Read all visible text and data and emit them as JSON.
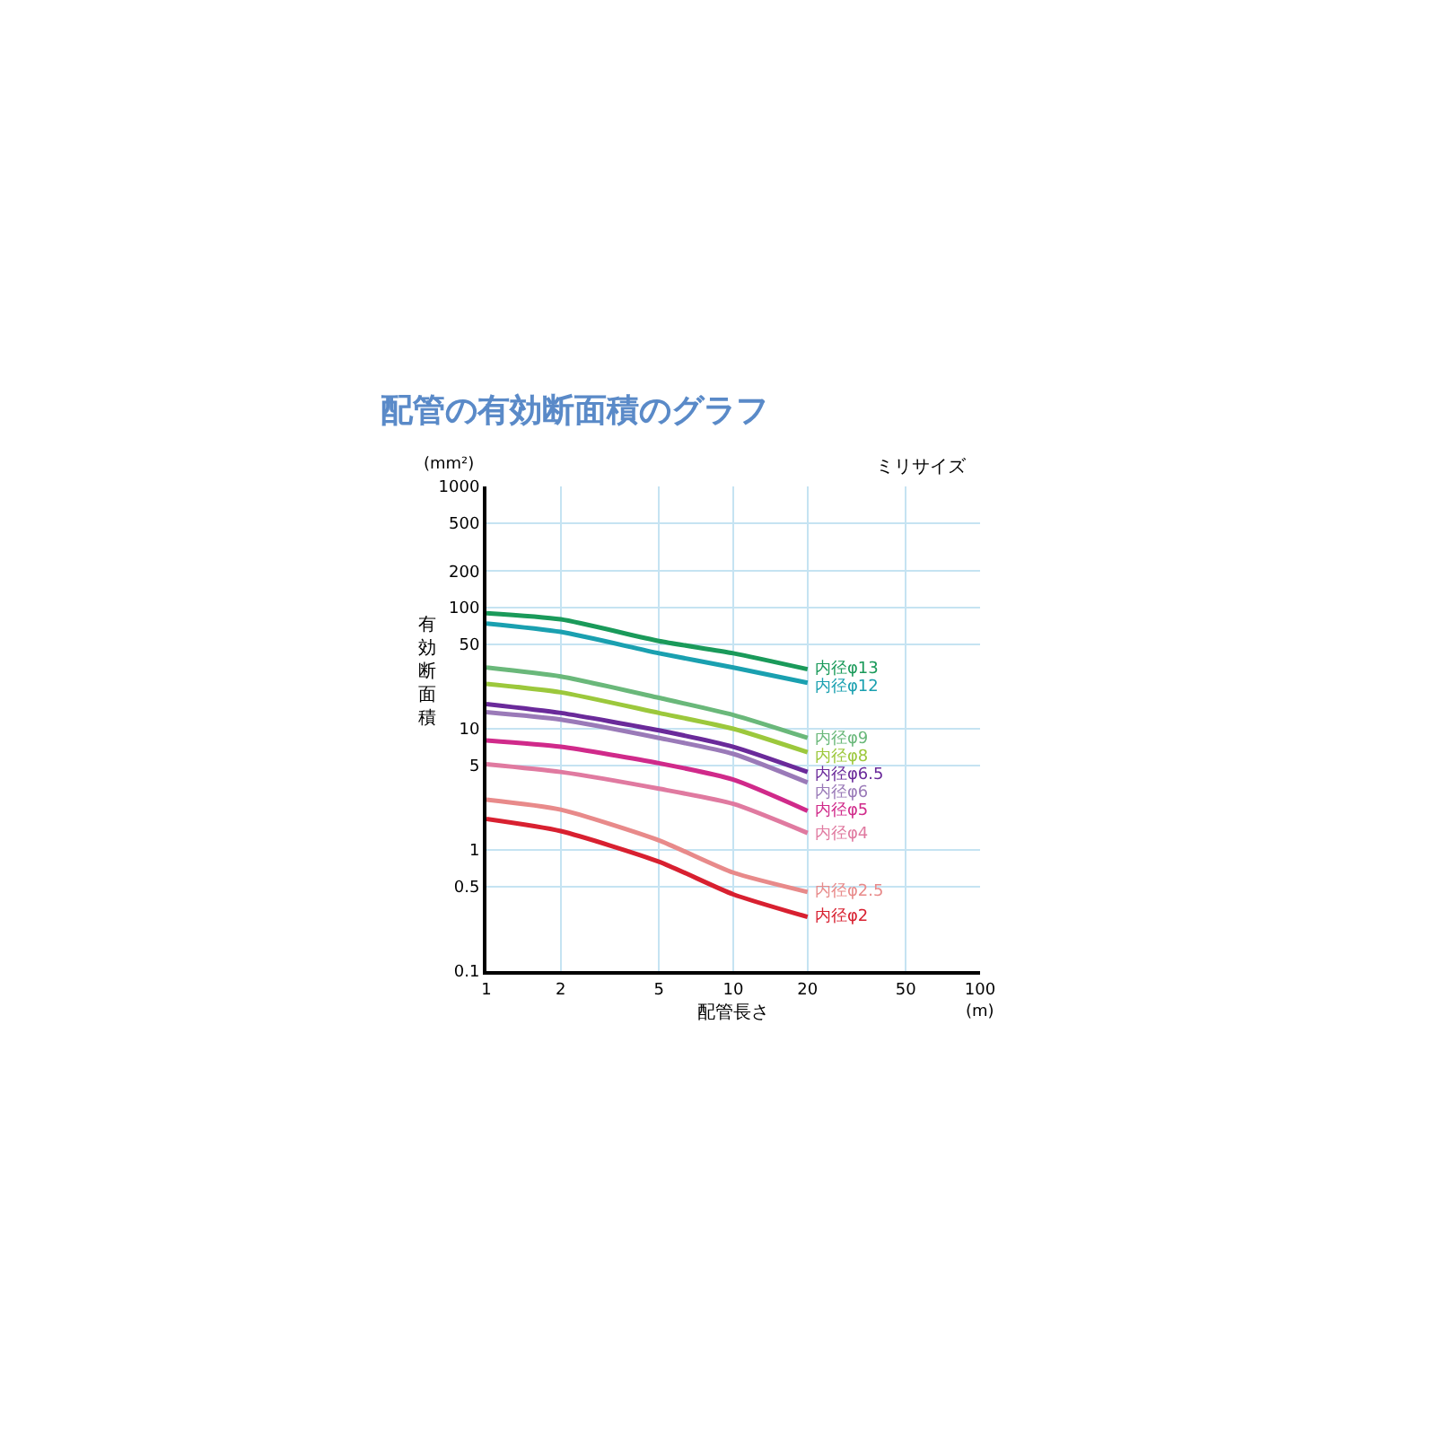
{
  "chart_data": {
    "type": "line",
    "title": "配管の有効断面積のグラフ",
    "xlabel": "配管長さ",
    "ylabel": "有効断面積",
    "log": "xy",
    "grid": true,
    "legend": false,
    "marker": "none",
    "line_style": "solid",
    "x": [
      1,
      2,
      5,
      10,
      20
    ],
    "xlim": [
      1,
      100
    ],
    "xticks": [
      1,
      2,
      5,
      10,
      20,
      50,
      100
    ],
    "ylim": [
      0.1,
      1000
    ],
    "yticks": [
      0.1,
      0.5,
      1,
      5,
      10,
      50,
      100,
      200,
      500,
      1000
    ],
    "annotations": [
      "(mm²)",
      "(m)",
      "ミリサイズ"
    ],
    "series": [
      {
        "name": "内径φ13",
        "color": "#1a9a5a",
        "values": [
          90,
          80,
          53,
          42,
          31
        ]
      },
      {
        "name": "内径φ12",
        "color": "#1aa0b0",
        "values": [
          74,
          63,
          42,
          32,
          24
        ]
      },
      {
        "name": "内径φ9",
        "color": "#6ab87a",
        "values": [
          32,
          27,
          18,
          13,
          8.4
        ]
      },
      {
        "name": "内径φ8",
        "color": "#9cc83c",
        "values": [
          23.5,
          20,
          13.5,
          10,
          6.4
        ]
      },
      {
        "name": "内径φ6.5",
        "color": "#6a2a9a",
        "values": [
          16,
          13.5,
          9.7,
          7.1,
          4.4
        ]
      },
      {
        "name": "内径φ6",
        "color": "#9a7ab8",
        "values": [
          13.7,
          11.9,
          8.4,
          6.2,
          3.6
        ]
      },
      {
        "name": "内径φ5",
        "color": "#d02a8a",
        "values": [
          8,
          7.1,
          5.2,
          3.8,
          2.1
        ]
      },
      {
        "name": "内径φ4",
        "color": "#e07aa0",
        "values": [
          5.1,
          4.4,
          3.2,
          2.4,
          1.38
        ]
      },
      {
        "name": "内径φ2.5",
        "color": "#e88a8a",
        "values": [
          2.6,
          2.15,
          1.2,
          0.65,
          0.45
        ]
      },
      {
        "name": "内径φ2",
        "color": "#d82030",
        "values": [
          1.8,
          1.43,
          0.8,
          0.43,
          0.28
        ]
      }
    ]
  }
}
